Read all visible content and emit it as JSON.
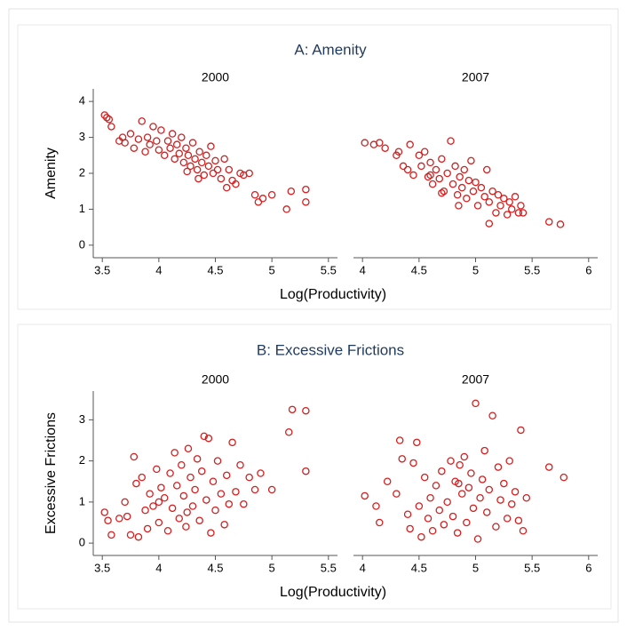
{
  "chart_data": [
    {
      "type": "scatter",
      "panel_title": "A: Amenity",
      "title": "2000",
      "ylabel": "Amenity",
      "xlabel": "Log(Productivity)",
      "color": "#d42020",
      "xlim": [
        3.42,
        5.58
      ],
      "xticks": [
        3.5,
        4,
        4.5,
        5,
        5.5
      ],
      "ylim": [
        -0.35,
        4.35
      ],
      "yticks": [
        0,
        1,
        2,
        3,
        4
      ],
      "x": [
        3.52,
        3.54,
        3.56,
        3.58,
        3.65,
        3.68,
        3.7,
        3.75,
        3.78,
        3.82,
        3.85,
        3.88,
        3.9,
        3.92,
        3.95,
        3.98,
        4.0,
        4.02,
        4.05,
        4.08,
        4.1,
        4.12,
        4.14,
        4.16,
        4.18,
        4.2,
        4.22,
        4.24,
        4.26,
        4.28,
        4.3,
        4.32,
        4.34,
        4.36,
        4.38,
        4.4,
        4.42,
        4.44,
        4.46,
        4.48,
        4.5,
        4.52,
        4.55,
        4.58,
        4.6,
        4.62,
        4.65,
        4.68,
        4.72,
        4.75,
        4.8,
        4.85,
        4.88,
        4.92,
        5.0,
        5.13,
        5.17,
        5.3,
        5.3,
        4.25,
        4.35
      ],
      "y": [
        3.62,
        3.55,
        3.5,
        3.3,
        2.9,
        3.0,
        2.85,
        3.1,
        2.7,
        2.95,
        3.45,
        2.6,
        3.0,
        2.8,
        3.3,
        2.9,
        2.65,
        3.2,
        2.5,
        2.9,
        2.7,
        3.1,
        2.4,
        2.8,
        2.55,
        3.0,
        2.3,
        2.7,
        2.5,
        2.2,
        2.85,
        2.4,
        2.1,
        2.6,
        2.3,
        1.95,
        2.5,
        2.2,
        2.75,
        2.0,
        2.35,
        2.1,
        1.85,
        2.4,
        1.6,
        2.1,
        1.8,
        1.7,
        2.0,
        1.95,
        2.0,
        1.4,
        1.2,
        1.3,
        1.4,
        1.0,
        1.5,
        1.55,
        1.2,
        2.05,
        1.85
      ]
    },
    {
      "type": "scatter",
      "title": "2007",
      "color": "#d42020",
      "xlim": [
        3.92,
        6.08
      ],
      "xticks": [
        4,
        4.5,
        5,
        5.5,
        6
      ],
      "ylim": [
        -0.35,
        4.35
      ],
      "x": [
        4.02,
        4.1,
        4.15,
        4.2,
        4.3,
        4.32,
        4.36,
        4.4,
        4.42,
        4.45,
        4.5,
        4.52,
        4.55,
        4.58,
        4.6,
        4.62,
        4.65,
        4.68,
        4.7,
        4.72,
        4.75,
        4.78,
        4.8,
        4.82,
        4.84,
        4.86,
        4.88,
        4.9,
        4.92,
        4.94,
        4.96,
        4.98,
        5.0,
        5.02,
        5.05,
        5.08,
        5.1,
        5.12,
        5.15,
        5.18,
        5.2,
        5.22,
        5.25,
        5.28,
        5.3,
        5.32,
        5.35,
        5.38,
        5.4,
        5.42,
        5.65,
        5.75,
        4.85,
        4.6,
        5.12,
        4.7
      ],
      "y": [
        2.85,
        2.8,
        2.85,
        2.7,
        2.5,
        2.6,
        2.2,
        2.1,
        2.8,
        1.95,
        2.5,
        2.2,
        2.6,
        1.9,
        2.3,
        1.7,
        2.1,
        1.85,
        2.4,
        1.5,
        2.0,
        2.9,
        1.7,
        2.2,
        1.4,
        1.9,
        1.6,
        2.1,
        1.3,
        1.8,
        2.35,
        1.5,
        1.75,
        1.1,
        1.6,
        1.35,
        2.1,
        1.2,
        1.5,
        0.9,
        1.4,
        1.1,
        1.3,
        0.85,
        1.2,
        1.0,
        1.35,
        0.9,
        1.1,
        0.9,
        0.65,
        0.58,
        1.1,
        1.95,
        0.6,
        1.45
      ]
    },
    {
      "type": "scatter",
      "panel_title": "B: Excessive Frictions",
      "title": "2000",
      "ylabel": "Excessive Frictions",
      "xlabel": "Log(Productivity)",
      "color": "#d42020",
      "xlim": [
        3.42,
        5.58
      ],
      "xticks": [
        3.5,
        4,
        4.5,
        5,
        5.5
      ],
      "ylim": [
        -0.3,
        3.7
      ],
      "yticks": [
        0,
        1,
        2,
        3
      ],
      "x": [
        3.52,
        3.55,
        3.58,
        3.65,
        3.7,
        3.72,
        3.75,
        3.78,
        3.8,
        3.82,
        3.85,
        3.88,
        3.9,
        3.92,
        3.95,
        3.98,
        4.0,
        4.02,
        4.05,
        4.08,
        4.1,
        4.12,
        4.14,
        4.16,
        4.18,
        4.2,
        4.22,
        4.24,
        4.26,
        4.28,
        4.3,
        4.32,
        4.34,
        4.36,
        4.38,
        4.4,
        4.42,
        4.44,
        4.46,
        4.48,
        4.5,
        4.52,
        4.55,
        4.58,
        4.6,
        4.62,
        4.65,
        4.68,
        4.72,
        4.75,
        4.8,
        4.85,
        4.9,
        5.0,
        5.15,
        5.18,
        5.3,
        5.3,
        4.0,
        4.25
      ],
      "y": [
        0.75,
        0.55,
        0.2,
        0.6,
        1.0,
        0.65,
        0.2,
        2.1,
        1.45,
        0.15,
        1.6,
        0.8,
        0.35,
        1.2,
        0.9,
        1.8,
        0.5,
        1.35,
        1.1,
        0.3,
        1.7,
        0.85,
        2.2,
        1.4,
        0.6,
        1.9,
        1.15,
        0.4,
        2.3,
        1.6,
        0.9,
        1.3,
        2.05,
        0.55,
        1.75,
        2.6,
        1.05,
        2.55,
        0.25,
        1.5,
        0.8,
        2.0,
        1.2,
        0.45,
        1.65,
        0.95,
        2.45,
        1.25,
        1.9,
        0.95,
        1.6,
        1.3,
        1.7,
        1.3,
        2.7,
        3.25,
        3.22,
        1.75,
        1.0,
        0.75
      ]
    },
    {
      "type": "scatter",
      "title": "2007",
      "color": "#d42020",
      "xlim": [
        3.92,
        6.08
      ],
      "xticks": [
        4,
        4.5,
        5,
        5.5,
        6
      ],
      "ylim": [
        -0.3,
        3.7
      ],
      "x": [
        4.02,
        4.12,
        4.15,
        4.22,
        4.3,
        4.33,
        4.35,
        4.4,
        4.42,
        4.45,
        4.48,
        4.5,
        4.52,
        4.55,
        4.58,
        4.6,
        4.62,
        4.65,
        4.68,
        4.7,
        4.72,
        4.75,
        4.78,
        4.8,
        4.82,
        4.84,
        4.86,
        4.88,
        4.9,
        4.92,
        4.94,
        4.96,
        4.98,
        5.0,
        5.02,
        5.04,
        5.06,
        5.08,
        5.1,
        5.12,
        5.15,
        5.18,
        5.2,
        5.22,
        5.25,
        5.28,
        5.3,
        5.32,
        5.35,
        5.38,
        5.4,
        5.42,
        5.45,
        5.65,
        5.78,
        4.85
      ],
      "y": [
        1.15,
        0.9,
        0.5,
        1.5,
        1.2,
        2.5,
        2.05,
        0.7,
        0.35,
        1.95,
        2.45,
        0.9,
        0.15,
        1.6,
        0.6,
        1.1,
        0.3,
        1.4,
        0.8,
        1.75,
        0.45,
        1.0,
        2.0,
        0.65,
        1.5,
        0.25,
        1.9,
        1.2,
        2.1,
        0.5,
        1.35,
        1.7,
        0.85,
        3.4,
        0.1,
        1.1,
        1.55,
        2.25,
        0.75,
        1.3,
        3.1,
        0.4,
        1.85,
        1.05,
        1.45,
        0.6,
        2.0,
        0.95,
        1.25,
        0.55,
        2.75,
        0.3,
        1.1,
        1.85,
        1.6,
        1.45
      ]
    }
  ]
}
